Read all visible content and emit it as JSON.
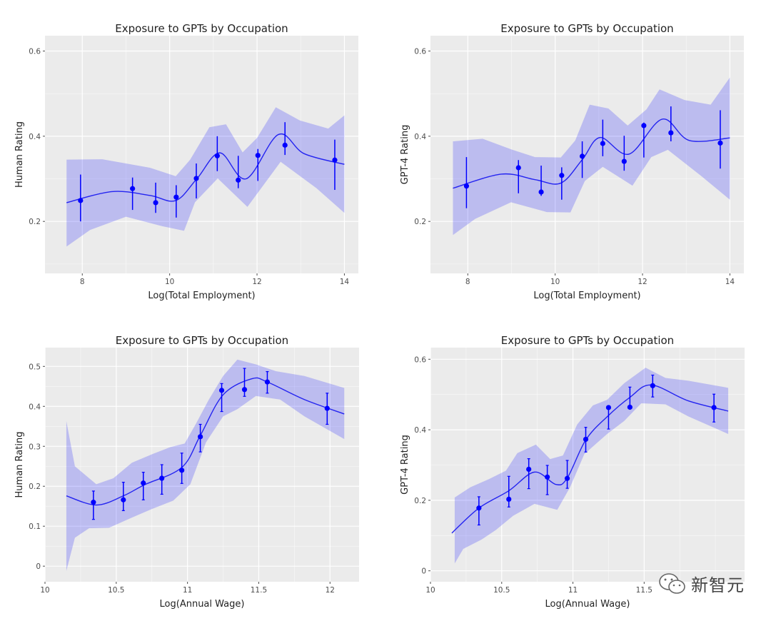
{
  "colors": {
    "panel_bg": "#ebebeb",
    "grid": "#ffffff",
    "band": "#0000ff",
    "line": "#2424f0",
    "point": "#0000ff",
    "text": "#222222",
    "tick": "#4d4d4d"
  },
  "watermark": {
    "text": "新智元",
    "icon": "wechat-icon"
  },
  "chart_data": [
    {
      "type": "scatter",
      "title": "Exposure to GPTs by Occupation",
      "xlabel": "Log(Total Employment)",
      "ylabel": "Human Rating",
      "xlim": [
        7.146,
        14.32
      ],
      "ylim": [
        0.078,
        0.636
      ],
      "xticks": [
        8,
        10,
        12,
        14
      ],
      "xtick_labels": [
        "8",
        "10",
        "12",
        "14"
      ],
      "xminor": [
        9,
        11,
        13
      ],
      "yticks": [
        0.2,
        0.4,
        0.6
      ],
      "ytick_labels": [
        "0.2",
        "0.4",
        "0.6"
      ],
      "yminor": [
        0.1,
        0.3,
        0.5
      ],
      "grid": true,
      "points": [
        {
          "x": 7.96,
          "y": 0.249,
          "lo": 0.2,
          "hi": 0.31
        },
        {
          "x": 9.15,
          "y": 0.277,
          "lo": 0.227,
          "hi": 0.303
        },
        {
          "x": 9.68,
          "y": 0.244,
          "lo": 0.22,
          "hi": 0.291
        },
        {
          "x": 10.15,
          "y": 0.257,
          "lo": 0.209,
          "hi": 0.285
        },
        {
          "x": 10.61,
          "y": 0.301,
          "lo": 0.254,
          "hi": 0.336
        },
        {
          "x": 11.09,
          "y": 0.354,
          "lo": 0.318,
          "hi": 0.4
        },
        {
          "x": 11.57,
          "y": 0.297,
          "lo": 0.278,
          "hi": 0.354
        },
        {
          "x": 12.02,
          "y": 0.355,
          "lo": 0.295,
          "hi": 0.37
        },
        {
          "x": 12.64,
          "y": 0.379,
          "lo": 0.356,
          "hi": 0.433
        },
        {
          "x": 13.78,
          "y": 0.344,
          "lo": 0.274,
          "hi": 0.392
        }
      ],
      "smooth": [
        [
          7.64,
          0.244
        ],
        [
          8.68,
          0.27
        ],
        [
          9.55,
          0.261
        ],
        [
          10.14,
          0.249
        ],
        [
          10.63,
          0.301
        ],
        [
          11.15,
          0.361
        ],
        [
          11.75,
          0.3
        ],
        [
          12.49,
          0.404
        ],
        [
          13.08,
          0.359
        ],
        [
          14.0,
          0.334
        ]
      ],
      "band_upper": [
        [
          7.64,
          0.345
        ],
        [
          8.46,
          0.346
        ],
        [
          9.55,
          0.326
        ],
        [
          10.14,
          0.306
        ],
        [
          10.47,
          0.345
        ],
        [
          10.91,
          0.421
        ],
        [
          11.29,
          0.428
        ],
        [
          11.67,
          0.362
        ],
        [
          12.0,
          0.396
        ],
        [
          12.43,
          0.468
        ],
        [
          12.98,
          0.437
        ],
        [
          13.63,
          0.418
        ],
        [
          14.0,
          0.449
        ]
      ],
      "band_lower": [
        [
          7.64,
          0.141
        ],
        [
          8.18,
          0.18
        ],
        [
          9.0,
          0.211
        ],
        [
          9.82,
          0.189
        ],
        [
          10.33,
          0.178
        ],
        [
          10.58,
          0.245
        ],
        [
          11.1,
          0.301
        ],
        [
          11.78,
          0.234
        ],
        [
          12.54,
          0.34
        ],
        [
          13.36,
          0.278
        ],
        [
          14.0,
          0.22
        ]
      ]
    },
    {
      "type": "scatter",
      "title": "Exposure to GPTs by Occupation",
      "xlabel": "Log(Total Employment)",
      "ylabel": "GPT-4 Rating",
      "xlim": [
        7.146,
        14.32
      ],
      "ylim": [
        0.078,
        0.636
      ],
      "xticks": [
        8,
        10,
        12,
        14
      ],
      "xtick_labels": [
        "8",
        "10",
        "12",
        "14"
      ],
      "xminor": [
        9,
        11,
        13
      ],
      "yticks": [
        0.2,
        0.4,
        0.6
      ],
      "ytick_labels": [
        "0.2",
        "0.4",
        "0.6"
      ],
      "yminor": [
        0.1,
        0.3,
        0.5
      ],
      "grid": true,
      "points": [
        {
          "x": 7.97,
          "y": 0.283,
          "lo": 0.231,
          "hi": 0.351
        },
        {
          "x": 9.16,
          "y": 0.326,
          "lo": 0.266,
          "hi": 0.344
        },
        {
          "x": 9.68,
          "y": 0.269,
          "lo": 0.26,
          "hi": 0.331
        },
        {
          "x": 10.15,
          "y": 0.308,
          "lo": 0.251,
          "hi": 0.327
        },
        {
          "x": 10.62,
          "y": 0.353,
          "lo": 0.302,
          "hi": 0.388
        },
        {
          "x": 11.09,
          "y": 0.383,
          "lo": 0.353,
          "hi": 0.439
        },
        {
          "x": 11.58,
          "y": 0.341,
          "lo": 0.319,
          "hi": 0.401
        },
        {
          "x": 12.03,
          "y": 0.425,
          "lo": 0.35,
          "hi": 0.432
        },
        {
          "x": 12.65,
          "y": 0.408,
          "lo": 0.388,
          "hi": 0.47
        },
        {
          "x": 13.78,
          "y": 0.384,
          "lo": 0.324,
          "hi": 0.461
        }
      ],
      "smooth": [
        [
          7.66,
          0.278
        ],
        [
          8.77,
          0.311
        ],
        [
          9.54,
          0.298
        ],
        [
          10.13,
          0.29
        ],
        [
          10.62,
          0.345
        ],
        [
          11.03,
          0.397
        ],
        [
          11.69,
          0.358
        ],
        [
          12.45,
          0.44
        ],
        [
          13.07,
          0.39
        ],
        [
          14.0,
          0.396
        ]
      ],
      "band_upper": [
        [
          7.66,
          0.388
        ],
        [
          8.34,
          0.394
        ],
        [
          9.0,
          0.369
        ],
        [
          9.54,
          0.351
        ],
        [
          10.13,
          0.35
        ],
        [
          10.46,
          0.39
        ],
        [
          10.79,
          0.474
        ],
        [
          11.22,
          0.465
        ],
        [
          11.66,
          0.425
        ],
        [
          12.09,
          0.463
        ],
        [
          12.39,
          0.51
        ],
        [
          12.96,
          0.485
        ],
        [
          13.56,
          0.474
        ],
        [
          14.0,
          0.538
        ]
      ],
      "band_lower": [
        [
          7.66,
          0.168
        ],
        [
          8.17,
          0.206
        ],
        [
          8.99,
          0.245
        ],
        [
          9.81,
          0.222
        ],
        [
          10.35,
          0.221
        ],
        [
          10.68,
          0.295
        ],
        [
          11.09,
          0.328
        ],
        [
          11.77,
          0.284
        ],
        [
          12.2,
          0.351
        ],
        [
          12.58,
          0.368
        ],
        [
          13.35,
          0.306
        ],
        [
          14.0,
          0.251
        ]
      ]
    },
    {
      "type": "scatter",
      "title": "Exposure to GPTs by Occupation",
      "xlabel": "Log(Annual Wage)",
      "ylabel": "Human Rating",
      "xlim": [
        10.0,
        12.204
      ],
      "ylim": [
        -0.039,
        0.547
      ],
      "xticks": [
        10,
        10.5,
        11,
        11.5,
        12
      ],
      "xtick_labels": [
        "10",
        "10.5",
        "11",
        "11.5",
        "12"
      ],
      "xminor": [
        10.25,
        10.75,
        11.25,
        11.75
      ],
      "yticks": [
        0,
        0.1,
        0.2,
        0.3,
        0.4,
        0.5
      ],
      "ytick_labels": [
        "0",
        "0.1",
        "0.2",
        "0.3",
        "0.4",
        "0.5"
      ],
      "yminor": [
        0.05,
        0.15,
        0.25,
        0.35,
        0.45
      ],
      "grid": true,
      "points": [
        {
          "x": 10.34,
          "y": 0.16,
          "lo": 0.117,
          "hi": 0.188
        },
        {
          "x": 10.55,
          "y": 0.166,
          "lo": 0.139,
          "hi": 0.21
        },
        {
          "x": 10.69,
          "y": 0.208,
          "lo": 0.166,
          "hi": 0.235
        },
        {
          "x": 10.82,
          "y": 0.22,
          "lo": 0.18,
          "hi": 0.254
        },
        {
          "x": 10.96,
          "y": 0.24,
          "lo": 0.207,
          "hi": 0.283
        },
        {
          "x": 11.09,
          "y": 0.324,
          "lo": 0.286,
          "hi": 0.355
        },
        {
          "x": 11.24,
          "y": 0.44,
          "lo": 0.387,
          "hi": 0.457
        },
        {
          "x": 11.4,
          "y": 0.442,
          "lo": 0.425,
          "hi": 0.495
        },
        {
          "x": 11.56,
          "y": 0.461,
          "lo": 0.433,
          "hi": 0.487
        },
        {
          "x": 11.98,
          "y": 0.395,
          "lo": 0.355,
          "hi": 0.433
        }
      ],
      "smooth": [
        [
          10.15,
          0.176
        ],
        [
          10.36,
          0.153
        ],
        [
          10.55,
          0.176
        ],
        [
          10.7,
          0.204
        ],
        [
          10.96,
          0.247
        ],
        [
          11.09,
          0.327
        ],
        [
          11.25,
          0.429
        ],
        [
          11.45,
          0.469
        ],
        [
          11.56,
          0.461
        ],
        [
          11.82,
          0.417
        ],
        [
          12.1,
          0.381
        ]
      ],
      "band_upper": [
        [
          10.15,
          0.363
        ],
        [
          10.21,
          0.25
        ],
        [
          10.36,
          0.205
        ],
        [
          10.48,
          0.22
        ],
        [
          10.61,
          0.259
        ],
        [
          10.75,
          0.28
        ],
        [
          10.88,
          0.298
        ],
        [
          10.98,
          0.307
        ],
        [
          11.06,
          0.357
        ],
        [
          11.15,
          0.417
        ],
        [
          11.25,
          0.476
        ],
        [
          11.35,
          0.517
        ],
        [
          11.48,
          0.505
        ],
        [
          11.62,
          0.488
        ],
        [
          11.82,
          0.476
        ],
        [
          12.1,
          0.446
        ]
      ],
      "band_lower": [
        [
          10.15,
          -0.012
        ],
        [
          10.21,
          0.071
        ],
        [
          10.31,
          0.095
        ],
        [
          10.45,
          0.096
        ],
        [
          10.6,
          0.12
        ],
        [
          10.75,
          0.143
        ],
        [
          10.9,
          0.164
        ],
        [
          11.02,
          0.205
        ],
        [
          11.13,
          0.31
        ],
        [
          11.25,
          0.375
        ],
        [
          11.35,
          0.393
        ],
        [
          11.48,
          0.426
        ],
        [
          11.65,
          0.417
        ],
        [
          11.82,
          0.375
        ],
        [
          12.1,
          0.318
        ]
      ]
    },
    {
      "type": "scatter",
      "title": "Exposure to GPTs by Occupation",
      "xlabel": "Log(Annual Wage)",
      "ylabel": "GPT-4 Rating",
      "xlim": [
        10.0,
        12.205
      ],
      "ylim": [
        -0.031,
        0.633
      ],
      "xticks": [
        10,
        10.5,
        11,
        11.5
      ],
      "xtick_labels": [
        "10",
        "10.5",
        "11",
        "11.5"
      ],
      "xminor": [
        10.25,
        10.75,
        11.25,
        11.75,
        12
      ],
      "yticks": [
        0,
        0.2,
        0.4,
        0.6
      ],
      "ytick_labels": [
        "0",
        "0.2",
        "0.4",
        "0.6"
      ],
      "yminor": [
        0.1,
        0.3,
        0.5
      ],
      "grid": true,
      "points": [
        {
          "x": 10.34,
          "y": 0.178,
          "lo": 0.13,
          "hi": 0.21
        },
        {
          "x": 10.55,
          "y": 0.203,
          "lo": 0.181,
          "hi": 0.268
        },
        {
          "x": 10.69,
          "y": 0.288,
          "lo": 0.233,
          "hi": 0.318
        },
        {
          "x": 10.82,
          "y": 0.266,
          "lo": 0.216,
          "hi": 0.299
        },
        {
          "x": 10.96,
          "y": 0.262,
          "lo": 0.234,
          "hi": 0.313
        },
        {
          "x": 11.09,
          "y": 0.373,
          "lo": 0.337,
          "hi": 0.407
        },
        {
          "x": 11.25,
          "y": 0.463,
          "lo": 0.402,
          "hi": 0.463
        },
        {
          "x": 11.4,
          "y": 0.464,
          "lo": 0.464,
          "hi": 0.521
        },
        {
          "x": 11.56,
          "y": 0.525,
          "lo": 0.493,
          "hi": 0.555
        },
        {
          "x": 11.99,
          "y": 0.463,
          "lo": 0.422,
          "hi": 0.501
        }
      ],
      "smooth": [
        [
          10.15,
          0.107
        ],
        [
          10.34,
          0.178
        ],
        [
          10.55,
          0.227
        ],
        [
          10.73,
          0.28
        ],
        [
          10.88,
          0.245
        ],
        [
          10.96,
          0.263
        ],
        [
          11.09,
          0.371
        ],
        [
          11.24,
          0.437
        ],
        [
          11.4,
          0.492
        ],
        [
          11.55,
          0.527
        ],
        [
          11.81,
          0.482
        ],
        [
          12.09,
          0.453
        ]
      ],
      "band_upper": [
        [
          10.17,
          0.208
        ],
        [
          10.28,
          0.237
        ],
        [
          10.41,
          0.26
        ],
        [
          10.53,
          0.284
        ],
        [
          10.61,
          0.334
        ],
        [
          10.74,
          0.358
        ],
        [
          10.84,
          0.317
        ],
        [
          10.93,
          0.327
        ],
        [
          11.03,
          0.415
        ],
        [
          11.14,
          0.469
        ],
        [
          11.24,
          0.485
        ],
        [
          11.36,
          0.532
        ],
        [
          11.51,
          0.576
        ],
        [
          11.65,
          0.547
        ],
        [
          11.81,
          0.539
        ],
        [
          12.09,
          0.519
        ]
      ],
      "band_lower": [
        [
          10.17,
          0.021
        ],
        [
          10.23,
          0.062
        ],
        [
          10.36,
          0.089
        ],
        [
          10.46,
          0.116
        ],
        [
          10.58,
          0.156
        ],
        [
          10.73,
          0.19
        ],
        [
          10.89,
          0.173
        ],
        [
          10.98,
          0.237
        ],
        [
          11.08,
          0.331
        ],
        [
          11.24,
          0.388
        ],
        [
          11.36,
          0.425
        ],
        [
          11.48,
          0.475
        ],
        [
          11.65,
          0.472
        ],
        [
          11.81,
          0.438
        ],
        [
          12.09,
          0.388
        ]
      ]
    }
  ]
}
